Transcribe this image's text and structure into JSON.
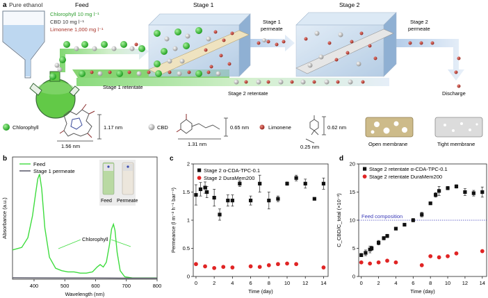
{
  "panel_a": {
    "label": "a",
    "pure_ethanol": "Pure ethanol",
    "feed_title": "Feed",
    "feed_chlorophyll": "Chlorophyll 10 mg l⁻¹",
    "feed_cbd": "CBD 10 mg l⁻¹",
    "feed_limonene": "Limonene 1,000 mg l⁻¹",
    "stage1": "Stage 1",
    "stage2": "Stage 2",
    "stage1_permeate_1": "Stage 1",
    "stage1_permeate_2": "permeate",
    "stage2_permeate_1": "Stage 2",
    "stage2_permeate_2": "permeate",
    "stage1_retentate": "Stage 1 retentate",
    "stage2_retentate": "Stage 2 retentate",
    "discharge": "Discharge",
    "legend_chlorophyll": "Chlorophyll",
    "legend_cbd": "CBD",
    "legend_limonene": "Limonene",
    "dim_chl_h": "1.17 nm",
    "dim_chl_w": "1.56 nm",
    "dim_cbd_h": "0.65 nm",
    "dim_cbd_w": "1.31 nm",
    "dim_lim_h": "0.62 nm",
    "dim_lim_w": "0.25 nm",
    "open_membrane": "Open membrane",
    "tight_membrane": "Tight membrane",
    "colors": {
      "chlorophyll": "#2db52d",
      "cbd": "#b8b8b8",
      "limonene": "#b23a2e",
      "feed_text": "#2e9e2e",
      "limonene_text": "#a83228",
      "arrow": "#4fbf3a",
      "blue_flow": "#a9c6e8"
    }
  },
  "panel_b": {
    "label": "b",
    "inset_feed": "Feed",
    "inset_permeate": "Permeate",
    "annotation": "Chlorophyll"
  },
  "panel_c": {
    "label": "c"
  },
  "panel_d": {
    "label": "d",
    "feed_composition": "Feed composition"
  },
  "chart_data": [
    {
      "type": "line",
      "xlabel": "Wavelength (nm)",
      "ylabel": "Absorbance (a.u.)",
      "xlim": [
        330,
        800
      ],
      "ylim": [
        0,
        1.0
      ],
      "xticks": [
        400,
        500,
        600,
        700,
        800
      ],
      "yticks": [],
      "legend": "top-right",
      "series": [
        {
          "name": "Feed",
          "color": "#3ddc3d",
          "x": [
            330,
            360,
            380,
            395,
            405,
            412,
            418,
            425,
            435,
            450,
            470,
            490,
            510,
            530,
            550,
            570,
            590,
            605,
            615,
            625,
            635,
            645,
            652,
            658,
            663,
            670,
            680,
            695,
            720,
            760,
            800
          ],
          "y": [
            0.24,
            0.26,
            0.34,
            0.52,
            0.7,
            0.82,
            0.86,
            0.74,
            0.42,
            0.18,
            0.09,
            0.07,
            0.06,
            0.06,
            0.05,
            0.05,
            0.06,
            0.1,
            0.12,
            0.1,
            0.14,
            0.28,
            0.41,
            0.45,
            0.4,
            0.22,
            0.07,
            0.02,
            0.01,
            0.01,
            0.01
          ]
        },
        {
          "name": "Stage 1 permeate",
          "color": "#4a4a5a",
          "x": [
            330,
            400,
            500,
            600,
            700,
            800
          ],
          "y": [
            0.012,
            0.011,
            0.01,
            0.01,
            0.009,
            0.009
          ]
        }
      ]
    },
    {
      "type": "scatter",
      "xlabel": "Time (day)",
      "ylabel": "Permeance (l m⁻² h⁻¹ bar⁻¹)",
      "xlim": [
        -0.3,
        14.5
      ],
      "ylim": [
        0,
        2.0
      ],
      "xticks": [
        0,
        2,
        4,
        6,
        8,
        10,
        12,
        14
      ],
      "yticks": [
        0,
        0.5,
        1.0,
        1.5,
        2.0
      ],
      "legend": "top-left",
      "series": [
        {
          "name": "Stage 2 α-CDA-TPC-0.1",
          "marker": "square",
          "color": "#111111",
          "x": [
            0,
            0.5,
            1,
            1.2,
            2,
            2.6,
            3.5,
            4,
            4.8,
            6,
            7,
            8,
            9,
            10,
            11,
            12,
            13,
            14
          ],
          "y": [
            1.45,
            1.55,
            1.58,
            1.5,
            1.4,
            1.1,
            1.35,
            1.35,
            1.65,
            1.35,
            1.65,
            1.35,
            1.38,
            1.65,
            1.75,
            1.65,
            1.38,
            1.65
          ],
          "err": [
            0.18,
            0.12,
            0.1,
            0.1,
            0.15,
            0.1,
            0.1,
            0.1,
            0.05,
            0.08,
            0.15,
            0.15,
            0.05,
            0.03,
            0.05,
            0.08,
            0.02,
            0.1
          ]
        },
        {
          "name": "Stage 2 DuraMem200",
          "marker": "circle",
          "color": "#e02424",
          "x": [
            0,
            1,
            2,
            3,
            4,
            6,
            7,
            8,
            9,
            10,
            11,
            14
          ],
          "y": [
            0.22,
            0.18,
            0.15,
            0.17,
            0.16,
            0.18,
            0.17,
            0.2,
            0.22,
            0.23,
            0.22,
            0.16
          ]
        }
      ]
    },
    {
      "type": "scatter",
      "xlabel": "Time (day)",
      "ylabel": "C_CBD/C_total (×10⁻³)",
      "xlim": [
        -0.3,
        14.5
      ],
      "ylim": [
        0,
        20
      ],
      "xticks": [
        0,
        2,
        4,
        6,
        8,
        10,
        12,
        14
      ],
      "yticks": [
        0,
        5,
        10,
        15,
        20
      ],
      "reference_line": 10,
      "legend": "top-left",
      "series": [
        {
          "name": "Stage 2 retentate α-CDA-TPC-0.1",
          "marker": "square",
          "color": "#111111",
          "x": [
            0,
            0.5,
            1,
            1.2,
            2,
            2.6,
            3,
            4,
            5,
            6,
            7,
            8,
            8.6,
            9,
            10,
            11,
            12,
            13,
            14
          ],
          "y": [
            3.8,
            4.2,
            4.8,
            5.0,
            6.0,
            6.8,
            7.2,
            8.5,
            9.2,
            10.0,
            11.0,
            13.0,
            14.5,
            15.2,
            15.7,
            16.0,
            15.0,
            14.8,
            15.0
          ],
          "err": [
            0.3,
            0.5,
            0.6,
            0.4,
            0.4,
            0.3,
            0.3,
            0.2,
            0.2,
            0.3,
            0.4,
            0.2,
            0.4,
            0.8,
            0.3,
            0.3,
            0.6,
            0.5,
            0.9
          ]
        },
        {
          "name": "Stage 2 retentate DuraMem200",
          "marker": "circle",
          "color": "#e02424",
          "x": [
            0,
            1,
            2,
            3,
            4,
            7,
            8,
            9,
            10,
            11,
            14
          ],
          "y": [
            2.5,
            2.3,
            2.5,
            2.8,
            2.5,
            2.0,
            3.6,
            3.4,
            3.6,
            4.1,
            4.5
          ]
        }
      ]
    }
  ]
}
